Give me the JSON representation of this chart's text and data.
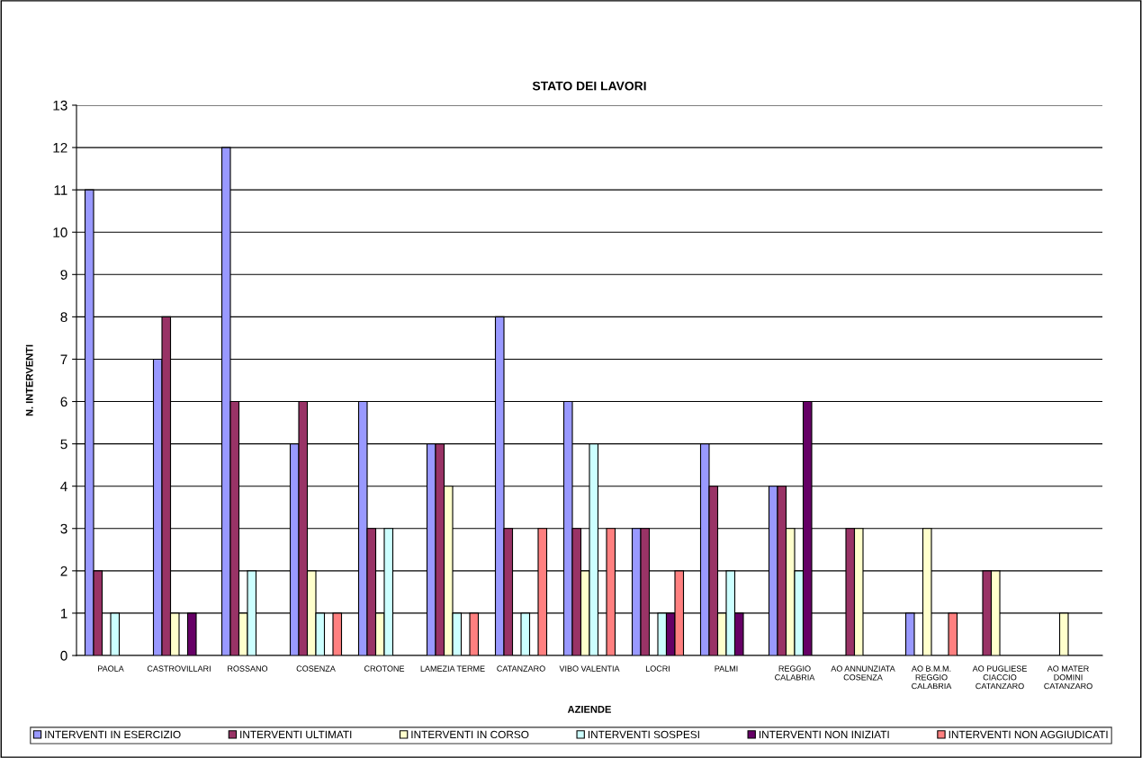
{
  "chart_data": {
    "type": "bar",
    "title": "STATO DEI LAVORI",
    "xlabel": "AZIENDE",
    "ylabel": "N. INTERVENTI",
    "categories": [
      "PAOLA",
      "CASTROVILLARI",
      "ROSSANO",
      "COSENZA",
      "CROTONE",
      "LAMEZIA TERME",
      "CATANZARO",
      "VIBO VALENTIA",
      "LOCRI",
      "PALMI",
      "REGGIO\nCALABRIA",
      "AO ANNUNZIATA\nCOSENZA",
      "AO B.M.M.\nREGGIO\nCALABRIA",
      "AO PUGLIESE\nCIACCIO\nCATANZARO",
      "AO MATER\nDOMINI\nCATANZARO"
    ],
    "series": [
      {
        "name": "INTERVENTI IN ESERCIZIO",
        "color": "#9999ff",
        "values": [
          11,
          7,
          12,
          5,
          6,
          5,
          8,
          6,
          3,
          5,
          4,
          null,
          1,
          null,
          null
        ]
      },
      {
        "name": "INTERVENTI ULTIMATI",
        "color": "#993366",
        "values": [
          2,
          8,
          6,
          6,
          3,
          5,
          3,
          3,
          3,
          4,
          4,
          3,
          null,
          2,
          null
        ]
      },
      {
        "name": "INTERVENTI IN CORSO",
        "color": "#ffffcc",
        "values": [
          null,
          1,
          1,
          2,
          1,
          4,
          null,
          2,
          null,
          1,
          3,
          3,
          3,
          2,
          1
        ]
      },
      {
        "name": "INTERVENTI SOSPESI",
        "color": "#ccffff",
        "values": [
          1,
          null,
          2,
          1,
          3,
          1,
          1,
          5,
          1,
          2,
          2,
          null,
          null,
          null,
          null
        ]
      },
      {
        "name": "INTERVENTI NON INIZIATI",
        "color": "#660066",
        "values": [
          null,
          1,
          null,
          null,
          null,
          null,
          null,
          null,
          1,
          1,
          6,
          null,
          null,
          null,
          null
        ]
      },
      {
        "name": "INTERVENTI NON AGGIUDICATI",
        "color": "#ff8080",
        "values": [
          null,
          null,
          null,
          1,
          null,
          1,
          3,
          3,
          2,
          null,
          null,
          null,
          1,
          null,
          null
        ]
      }
    ],
    "ylim": [
      0,
      13
    ],
    "yticks": [
      0,
      1,
      2,
      3,
      4,
      5,
      6,
      7,
      8,
      9,
      10,
      11,
      12,
      13
    ],
    "grid": "y",
    "legend": "bottom"
  }
}
